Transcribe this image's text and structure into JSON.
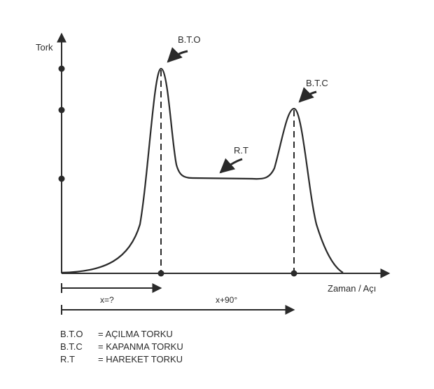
{
  "diagram": {
    "y_axis_label": "Tork",
    "x_axis_label": "Zaman / Açı",
    "peak_open_label": "B.T.O",
    "peak_close_label": "B.T.C",
    "running_label": "R.T",
    "span_open_label": "x=?",
    "span_close_label": "x+90°"
  },
  "legend": [
    {
      "abbr": "B.T.O",
      "desc": "= AÇILMA TORKU"
    },
    {
      "abbr": "B.T.C",
      "desc": "= KAPANMA TORKU"
    },
    {
      "abbr": "R.T",
      "desc": "= HAREKET TORKU"
    }
  ]
}
